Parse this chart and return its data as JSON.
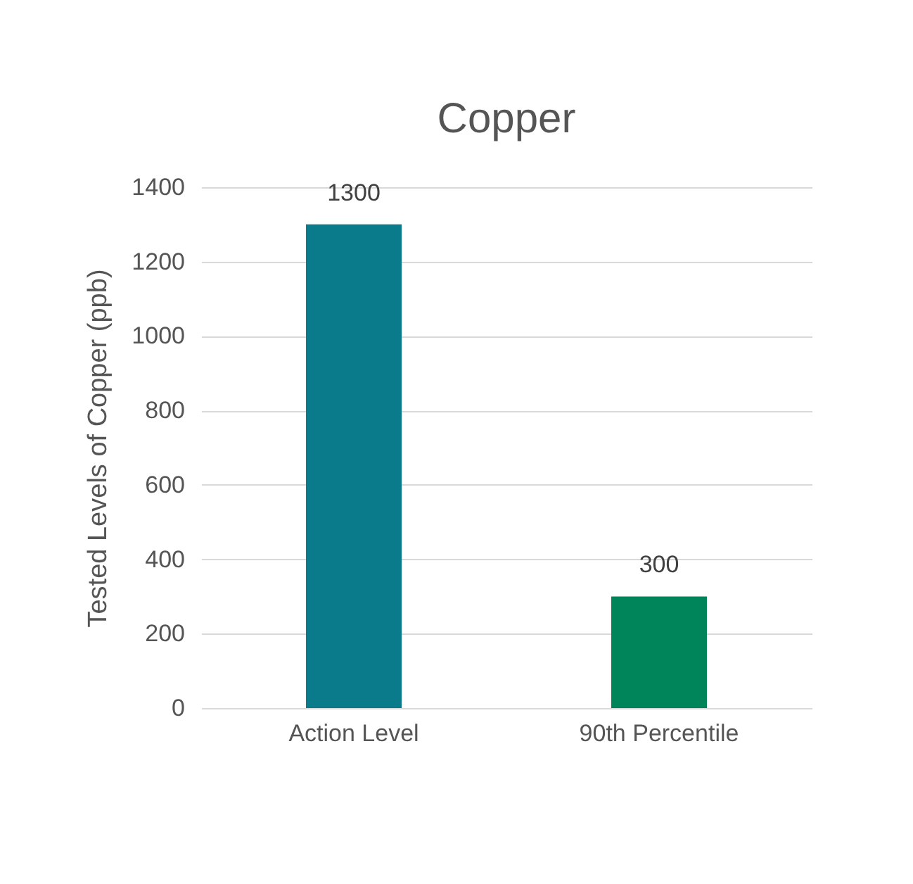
{
  "chart_data": {
    "type": "bar",
    "title": "Copper",
    "ylabel": "Tested Levels of Copper (ppb)",
    "categories": [
      "Action Level",
      "90th Percentile"
    ],
    "values": [
      1300,
      300
    ],
    "colors": [
      "#0a7b8a",
      "#00855a"
    ],
    "ylim": [
      0,
      1400
    ],
    "yticks": [
      0,
      200,
      400,
      600,
      800,
      1000,
      1200,
      1400
    ],
    "grid": "y",
    "data_labels": true
  }
}
